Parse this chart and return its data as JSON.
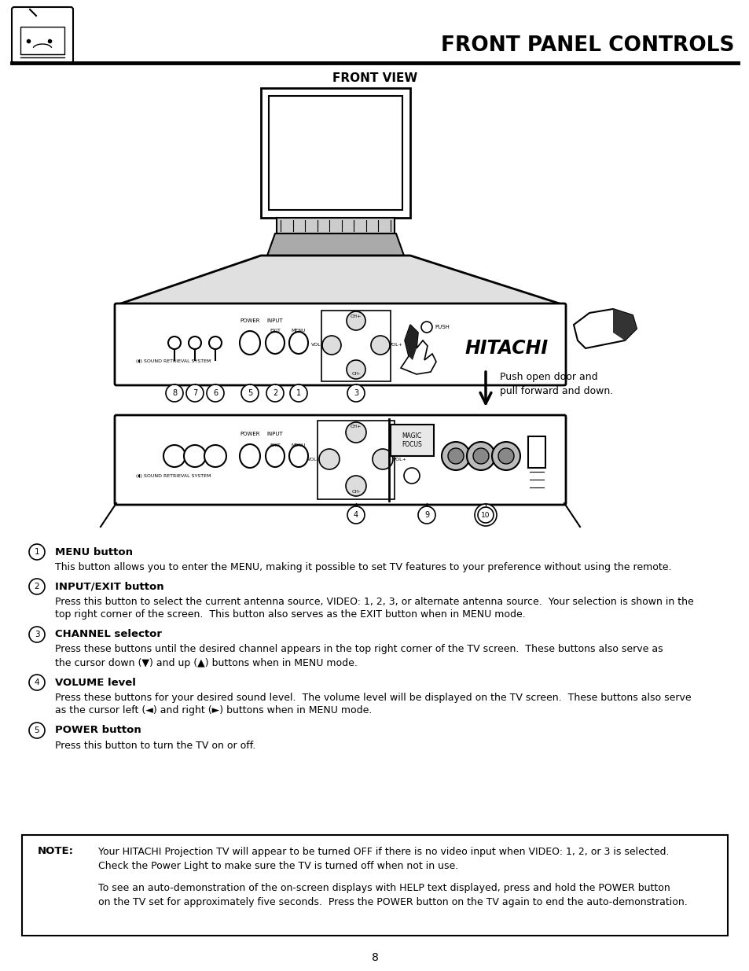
{
  "title": "FRONT PANEL CONTROLS",
  "subtitle": "FRONT VIEW",
  "page_number": "8",
  "bg_color": "#ffffff",
  "items": [
    {
      "num": "1",
      "heading": "MENU button",
      "text": "This button allows you to enter the MENU, making it possible to set TV features to your preference without using the remote."
    },
    {
      "num": "2",
      "heading": "INPUT/EXIT button",
      "text": "Press this button to select the current antenna source, VIDEO: 1, 2, 3, or alternate antenna source.  Your selection is shown in the\ntop right corner of the screen.  This button also serves as the EXIT button when in MENU mode."
    },
    {
      "num": "3",
      "heading": "CHANNEL selector",
      "text": "Press these buttons until the desired channel appears in the top right corner of the TV screen.  These buttons also serve as\nthe cursor down (▼) and up (▲) buttons when in MENU mode."
    },
    {
      "num": "4",
      "heading": "VOLUME level",
      "text": "Press these buttons for your desired sound level.  The volume level will be displayed on the TV screen.  These buttons also serve\nas the cursor left (◄) and right (►) buttons when in MENU mode."
    },
    {
      "num": "5",
      "heading": "POWER button",
      "text": "Press this button to turn the TV on or off."
    }
  ],
  "note_label": "NOTE:",
  "note_text1a": "Your HITACHI Projection TV will appear to be turned OFF if there is no video input when VIDEO: 1, 2, or 3 is selected.",
  "note_text1b": "Check the Power Light to make sure the TV is turned off when not in use.",
  "note_text2a": "To see an auto-demonstration of the on-screen displays with HELP text displayed, press and hold the POWER button",
  "note_text2b": "on the TV set for approximately five seconds.  Press the POWER button on the TV again to end the auto-demonstration.",
  "push_text_line1": "Push open door and",
  "push_text_line2": "pull forward and down."
}
